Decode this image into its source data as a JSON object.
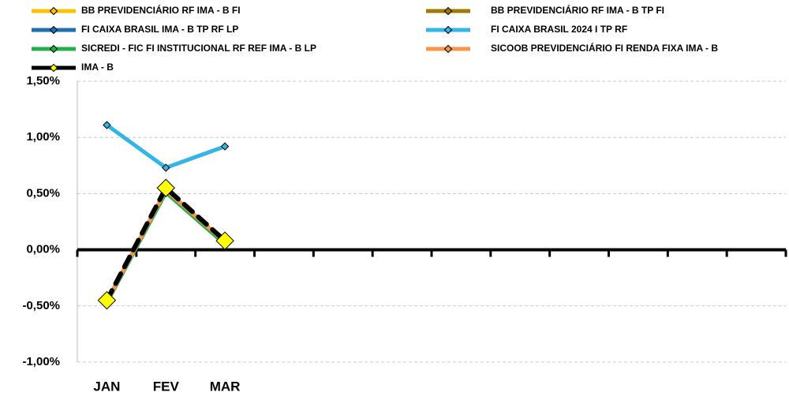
{
  "chart_data": {
    "type": "line",
    "categories": [
      "JAN",
      "FEV",
      "MAR",
      null,
      null,
      null,
      null,
      null,
      null,
      null,
      null,
      null
    ],
    "series": [
      {
        "name": "BB PREVIDENCIÁRIO RF IMA - B FI",
        "color": "#ffc000",
        "values": [
          -0.46,
          0.53,
          0.07,
          null,
          null,
          null,
          null,
          null,
          null,
          null,
          null,
          null
        ]
      },
      {
        "name": "BB PREVIDENCIÁRIO RF IMA - B TP FI",
        "color": "#a07a00",
        "values": [
          -0.46,
          0.53,
          0.07,
          null,
          null,
          null,
          null,
          null,
          null,
          null,
          null,
          null
        ]
      },
      {
        "name": "FI CAIXA BRASIL IMA - B TP RF LP",
        "color": "#1f6fb5",
        "values": [
          -0.47,
          0.52,
          0.06,
          null,
          null,
          null,
          null,
          null,
          null,
          null,
          null,
          null
        ]
      },
      {
        "name": "FI CAIXA BRASIL 2024 I TP RF",
        "color": "#33b5e5",
        "values": [
          1.11,
          0.73,
          0.92,
          null,
          null,
          null,
          null,
          null,
          null,
          null,
          null,
          null
        ]
      },
      {
        "name": "SICREDI - FIC FI INSTITUCIONAL RF REF IMA - B LP",
        "color": "#22b04b",
        "values": [
          -0.47,
          0.51,
          0.05,
          null,
          null,
          null,
          null,
          null,
          null,
          null,
          null,
          null
        ]
      },
      {
        "name": "SICOOB PREVIDENCIÁRIO FI RENDA FIXA IMA - B",
        "color": "#f79646",
        "values": [
          -0.46,
          0.53,
          0.07,
          null,
          null,
          null,
          null,
          null,
          null,
          null,
          null,
          null
        ]
      },
      {
        "name": "IMA - B",
        "color": "#000000",
        "marker_color": "#ffff00",
        "line_style": "dotted",
        "values": [
          -0.45,
          0.55,
          0.08,
          null,
          null,
          null,
          null,
          null,
          null,
          null,
          null,
          null
        ]
      }
    ],
    "ylim": [
      -1.0,
      1.5
    ],
    "yticks": [
      {
        "value": -1.0,
        "label": "-1,00%"
      },
      {
        "value": -0.5,
        "label": "-0,50%"
      },
      {
        "value": 0,
        "label": "0,00%"
      },
      {
        "value": 0.5,
        "label": "0,50%"
      },
      {
        "value": 1.0,
        "label": "1,00%"
      },
      {
        "value": 1.5,
        "label": "1,50%"
      }
    ],
    "grid": true
  }
}
